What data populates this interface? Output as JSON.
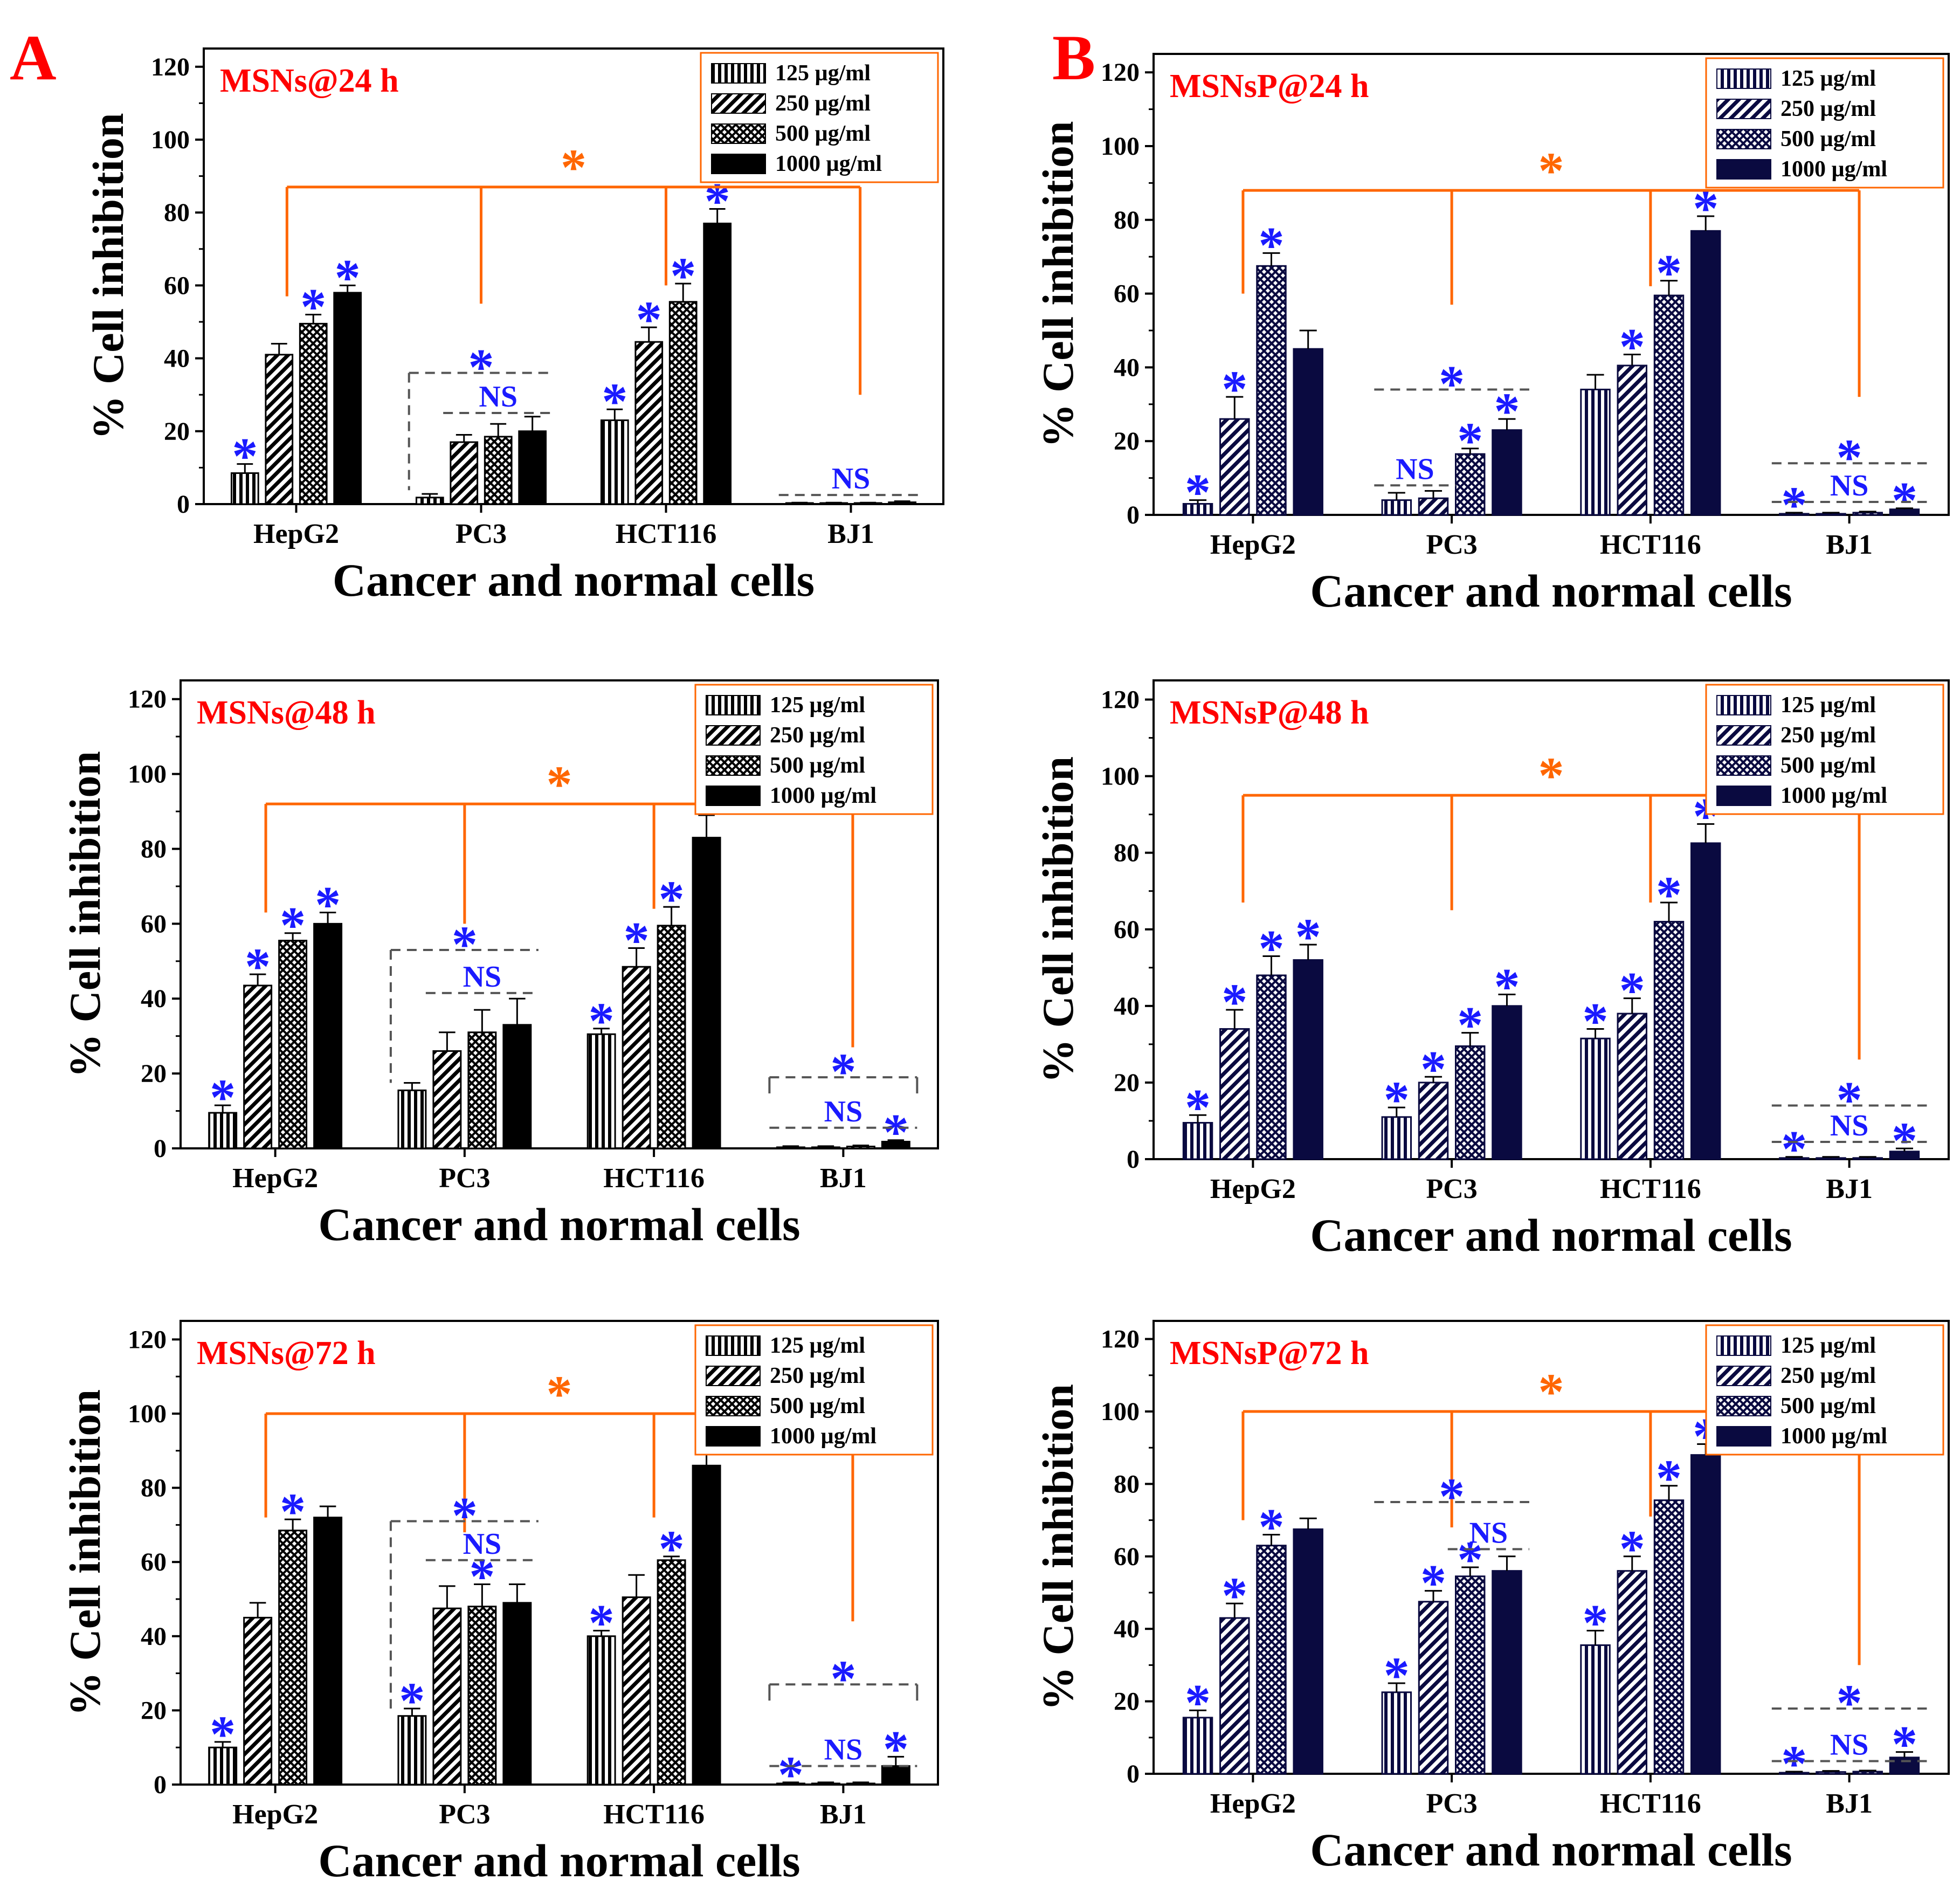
{
  "figure": {
    "colors": {
      "axis": "#000000",
      "title": "#ff0000",
      "orange": "#ff6600",
      "blue": "#1a1aff",
      "dashed": "#555555",
      "A_bar": "#000000",
      "B_bar": "#0a0a40"
    },
    "panel_letters": [
      {
        "label": "A",
        "color": "#ff0000"
      },
      {
        "label": "B",
        "color": "#ff0000"
      }
    ],
    "shared": {
      "ylabel": "% Cell inhibition",
      "xlabel": "Cancer and normal cells",
      "categories": [
        "HepG2",
        "PC3",
        "HCT116",
        "BJ1"
      ],
      "legend": [
        "125 µg/ml",
        "250 µg/ml",
        "500 µg/ml",
        "1000 µg/ml"
      ],
      "yticks": [
        0,
        20,
        40,
        60,
        80,
        100,
        120
      ],
      "ylim": [
        0,
        125
      ]
    }
  },
  "chart_data": [
    {
      "type": "bar",
      "title": "MSNs@24 h",
      "xlabel": "Cancer and normal cells",
      "ylabel": "% Cell inhibition",
      "categories": [
        "HepG2",
        "PC3",
        "HCT116",
        "BJ1"
      ],
      "ylim": [
        0,
        125
      ],
      "series": [
        {
          "name": "125 µg/ml",
          "values": [
            8.5,
            1.8,
            23,
            0.2
          ],
          "errors": [
            2.5,
            1,
            3,
            0.2
          ]
        },
        {
          "name": "250 µg/ml",
          "values": [
            41,
            17,
            44.5,
            0.2
          ],
          "errors": [
            3,
            2,
            4,
            0.2
          ]
        },
        {
          "name": "500 µg/ml",
          "values": [
            49.5,
            18.5,
            55.5,
            0.2
          ],
          "errors": [
            2.5,
            3.5,
            5,
            0.2
          ]
        },
        {
          "name": "1000 µg/ml",
          "values": [
            58,
            20,
            77,
            0.5
          ],
          "errors": [
            2,
            4,
            4,
            0.3
          ]
        }
      ],
      "annotations": {
        "star_above": [
          [
            1,
            0,
            1,
            1
          ],
          [
            0,
            0,
            0,
            0
          ],
          [
            1,
            1,
            1,
            1
          ],
          [
            0,
            0,
            0,
            0
          ]
        ],
        "outer_star": true,
        "outer_label": "*",
        "group_brackets": [
          {
            "group": 1,
            "label": "*",
            "y": 36,
            "from": 0,
            "to": 3,
            "type": "dashed-corner"
          },
          {
            "group": 1,
            "label": "NS",
            "y": 25,
            "from": 1,
            "to": 3,
            "type": "dashed"
          },
          {
            "group": 3,
            "label": "NS",
            "y": 2.5,
            "from": 0,
            "to": 3,
            "type": "dashed"
          }
        ],
        "orange_bracket_y": 87,
        "orange_ends": [
          57,
          55,
          60,
          30
        ]
      }
    },
    {
      "type": "bar",
      "title": "MSNsP@24 h",
      "xlabel": "Cancer and normal cells",
      "ylabel": "% Cell inhibition",
      "categories": [
        "HepG2",
        "PC3",
        "HCT116",
        "BJ1"
      ],
      "ylim": [
        0,
        125
      ],
      "series": [
        {
          "name": "125 µg/ml",
          "values": [
            3,
            4,
            34,
            0.3
          ],
          "errors": [
            1,
            2,
            4,
            0.3
          ]
        },
        {
          "name": "250 µg/ml",
          "values": [
            26,
            4.5,
            40.5,
            0.3
          ],
          "errors": [
            6,
            2,
            3,
            0.3
          ]
        },
        {
          "name": "500 µg/ml",
          "values": [
            67.5,
            16.5,
            59.5,
            0.6
          ],
          "errors": [
            3.5,
            1.5,
            4,
            0.3
          ]
        },
        {
          "name": "1000 µg/ml",
          "values": [
            45,
            23,
            77,
            1.5
          ],
          "errors": [
            5,
            3,
            4,
            0.3
          ]
        }
      ],
      "annotations": {
        "star_above": [
          [
            1,
            1,
            1,
            0
          ],
          [
            0,
            0,
            1,
            1
          ],
          [
            0,
            1,
            1,
            1
          ],
          [
            1,
            0,
            0,
            1
          ]
        ],
        "outer_star": true,
        "outer_label": "*",
        "group_brackets": [
          {
            "group": 1,
            "label": "NS",
            "y": 8,
            "from": 0,
            "to": 1,
            "type": "dashed"
          },
          {
            "group": 1,
            "label": "*",
            "y": 34,
            "from": 0,
            "to": 3,
            "type": "dashed"
          },
          {
            "group": 3,
            "label": "NS",
            "y": 3.5,
            "from": 0,
            "to": 3,
            "type": "dashed"
          },
          {
            "group": 3,
            "label": "*",
            "y": 14,
            "from": 0,
            "to": 3,
            "type": "dashed"
          }
        ],
        "orange_bracket_y": 88,
        "orange_ends": [
          60,
          57,
          62,
          32
        ]
      }
    },
    {
      "type": "bar",
      "title": "MSNs@48 h",
      "xlabel": "Cancer and normal cells",
      "ylabel": "% Cell inhibition",
      "categories": [
        "HepG2",
        "PC3",
        "HCT116",
        "BJ1"
      ],
      "ylim": [
        0,
        125
      ],
      "series": [
        {
          "name": "125 µg/ml",
          "values": [
            9.5,
            15.5,
            30.5,
            0.3
          ],
          "errors": [
            2,
            2,
            1.5,
            0.3
          ]
        },
        {
          "name": "250 µg/ml",
          "values": [
            43.5,
            26,
            48.5,
            0.3
          ],
          "errors": [
            3,
            5,
            5,
            0.3
          ]
        },
        {
          "name": "500 µg/ml",
          "values": [
            55.5,
            31,
            59.5,
            0.5
          ],
          "errors": [
            2,
            6,
            5,
            0.3
          ]
        },
        {
          "name": "1000 µg/ml",
          "values": [
            60,
            33,
            83,
            1.8
          ],
          "errors": [
            3,
            7,
            6,
            0.4
          ]
        }
      ],
      "annotations": {
        "star_above": [
          [
            1,
            1,
            1,
            1
          ],
          [
            0,
            0,
            0,
            0
          ],
          [
            1,
            1,
            1,
            1
          ],
          [
            0,
            0,
            0,
            1
          ]
        ],
        "outer_star": true,
        "outer_label": "*",
        "group_brackets": [
          {
            "group": 1,
            "label": "*",
            "y": 53,
            "from": 0,
            "to": 3,
            "type": "dashed-corner"
          },
          {
            "group": 1,
            "label": "NS",
            "y": 41.5,
            "from": 1,
            "to": 3,
            "type": "dashed"
          },
          {
            "group": 3,
            "label": "*",
            "y": 19,
            "from": 0,
            "to": 3,
            "type": "dashed-corner-right"
          },
          {
            "group": 3,
            "label": "NS",
            "y": 5.5,
            "from": 0,
            "to": 3,
            "type": "dashed"
          }
        ],
        "orange_bracket_y": 92,
        "orange_ends": [
          63,
          60,
          64,
          27
        ]
      }
    },
    {
      "type": "bar",
      "title": "MSNsP@48 h",
      "xlabel": "Cancer and normal cells",
      "ylabel": "% Cell inhibition",
      "categories": [
        "HepG2",
        "PC3",
        "HCT116",
        "BJ1"
      ],
      "ylim": [
        0,
        125
      ],
      "series": [
        {
          "name": "125 µg/ml",
          "values": [
            9.5,
            11,
            31.5,
            0.3
          ],
          "errors": [
            2,
            2.5,
            2.5,
            0.3
          ]
        },
        {
          "name": "250 µg/ml",
          "values": [
            34,
            20,
            38,
            0.3
          ],
          "errors": [
            5,
            1.5,
            4,
            0.3
          ]
        },
        {
          "name": "500 µg/ml",
          "values": [
            48,
            29.5,
            62,
            0.3
          ],
          "errors": [
            5,
            3.5,
            5,
            0.3
          ]
        },
        {
          "name": "1000 µg/ml",
          "values": [
            52,
            40,
            82.5,
            2
          ],
          "errors": [
            4,
            3,
            5,
            0.8
          ]
        }
      ],
      "annotations": {
        "star_above": [
          [
            1,
            1,
            1,
            1
          ],
          [
            1,
            1,
            1,
            1
          ],
          [
            1,
            1,
            1,
            1
          ],
          [
            1,
            0,
            0,
            1
          ]
        ],
        "outer_star": true,
        "outer_label": "*",
        "group_brackets": [
          {
            "group": 3,
            "label": "*",
            "y": 14,
            "from": 0,
            "to": 3,
            "type": "dashed"
          },
          {
            "group": 3,
            "label": "NS",
            "y": 4.5,
            "from": 0,
            "to": 3,
            "type": "dashed"
          }
        ],
        "orange_bracket_y": 95,
        "orange_ends": [
          67,
          65,
          67,
          26
        ]
      }
    },
    {
      "type": "bar",
      "title": "MSNs@72 h",
      "xlabel": "Cancer and normal cells",
      "ylabel": "% Cell inhibition",
      "categories": [
        "HepG2",
        "PC3",
        "HCT116",
        "BJ1"
      ],
      "ylim": [
        0,
        125
      ],
      "series": [
        {
          "name": "125 µg/ml",
          "values": [
            10,
            18.5,
            40,
            0.3
          ],
          "errors": [
            1.5,
            2,
            1.5,
            0.3
          ]
        },
        {
          "name": "250 µg/ml",
          "values": [
            45,
            47.5,
            50.5,
            0.3
          ],
          "errors": [
            4,
            6,
            6,
            0.3
          ]
        },
        {
          "name": "500 µg/ml",
          "values": [
            68.5,
            48,
            60.5,
            0.3
          ],
          "errors": [
            3,
            6,
            1,
            0.3
          ]
        },
        {
          "name": "1000 µg/ml",
          "values": [
            72,
            49,
            86,
            5
          ],
          "errors": [
            3,
            5,
            6,
            2.5
          ]
        }
      ],
      "annotations": {
        "star_above": [
          [
            1,
            0,
            1,
            0
          ],
          [
            1,
            0,
            1,
            0
          ],
          [
            1,
            0,
            1,
            0
          ],
          [
            1,
            0,
            0,
            1
          ]
        ],
        "outer_star": true,
        "outer_label": "*",
        "group_brackets": [
          {
            "group": 1,
            "label": "*",
            "y": 71,
            "from": 0,
            "to": 3,
            "type": "dashed-corner"
          },
          {
            "group": 1,
            "label": "NS",
            "y": 60.5,
            "from": 1,
            "to": 3,
            "type": "dashed"
          },
          {
            "group": 3,
            "label": "*",
            "y": 27,
            "from": 0,
            "to": 3,
            "type": "dashed-corner-right"
          },
          {
            "group": 3,
            "label": "NS",
            "y": 5,
            "from": 0,
            "to": 3,
            "type": "dashed"
          }
        ],
        "orange_bracket_y": 100,
        "orange_ends": [
          72,
          68,
          72,
          44
        ]
      }
    },
    {
      "type": "bar",
      "title": "MSNsP@72 h",
      "xlabel": "Cancer and normal cells",
      "ylabel": "% Cell inhibition",
      "categories": [
        "HepG2",
        "PC3",
        "HCT116",
        "BJ1"
      ],
      "ylim": [
        0,
        125
      ],
      "series": [
        {
          "name": "125 µg/ml",
          "values": [
            15.5,
            22.5,
            35.5,
            0.3
          ],
          "errors": [
            2,
            2.5,
            4,
            0.3
          ]
        },
        {
          "name": "250 µg/ml",
          "values": [
            43,
            47.5,
            56,
            0.5
          ],
          "errors": [
            4,
            3,
            4,
            0.3
          ]
        },
        {
          "name": "500 µg/ml",
          "values": [
            63,
            54.5,
            75.5,
            0.6
          ],
          "errors": [
            3,
            2.5,
            4,
            0.3
          ]
        },
        {
          "name": "1000 µg/ml",
          "values": [
            67.5,
            56,
            88,
            4.5
          ],
          "errors": [
            3,
            4,
            3,
            1.5
          ]
        }
      ],
      "annotations": {
        "star_above": [
          [
            1,
            1,
            1,
            0
          ],
          [
            1,
            1,
            1,
            0
          ],
          [
            1,
            1,
            1,
            1
          ],
          [
            1,
            0,
            0,
            1
          ]
        ],
        "outer_star": true,
        "outer_label": "*",
        "group_brackets": [
          {
            "group": 1,
            "label": "*",
            "y": 75,
            "from": 0,
            "to": 3,
            "type": "dashed"
          },
          {
            "group": 1,
            "label": "NS",
            "y": 62,
            "from": 2,
            "to": 3,
            "type": "dashed"
          },
          {
            "group": 3,
            "label": "*",
            "y": 18,
            "from": 0,
            "to": 3,
            "type": "dashed"
          },
          {
            "group": 3,
            "label": "NS",
            "y": 3.5,
            "from": 0,
            "to": 3,
            "type": "dashed"
          }
        ],
        "orange_bracket_y": 100,
        "orange_ends": [
          70,
          68,
          71,
          30
        ]
      }
    }
  ]
}
